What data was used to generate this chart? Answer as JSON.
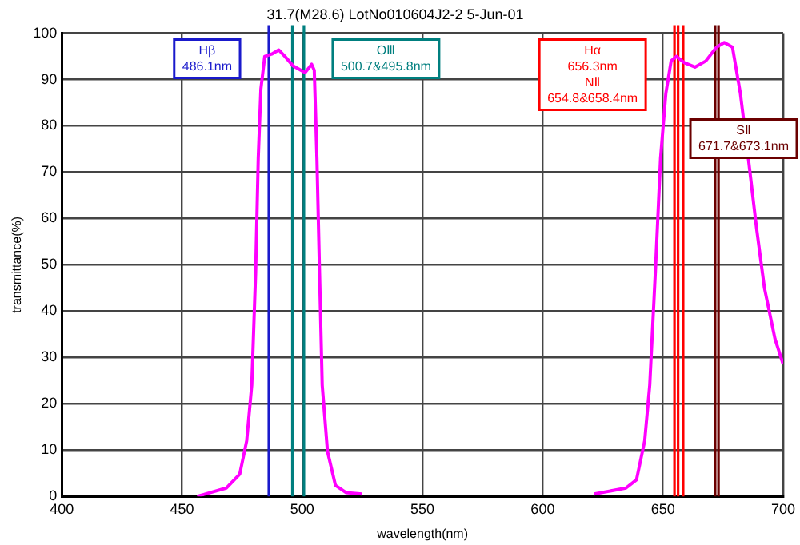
{
  "chart_data": {
    "type": "line",
    "title": "31.7(M28.6) LotNo010604J2-2 5-Jun-01",
    "xlabel": "wavelength(nm)",
    "ylabel": "transmittance(%)",
    "xlim": [
      400,
      700
    ],
    "xticks": [
      400,
      450,
      500,
      550,
      600,
      650,
      700
    ],
    "ylim": [
      0,
      100
    ],
    "yticks": [
      0,
      10,
      20,
      30,
      40,
      50,
      60,
      70,
      80,
      90,
      100
    ],
    "grid": true,
    "legend": false,
    "marker": "none",
    "line_style": "solid",
    "series": [
      {
        "color": "#ff00ff",
        "x": [
          456.3,
          468.4,
          474,
          476.9,
          479,
          480.6,
          481.7,
          482.8,
          484.4,
          487.3,
          490.2,
          492.8,
          496.1,
          499.5,
          501.2,
          503.9,
          505,
          506.1,
          507.2,
          508.3,
          510.5,
          513.8,
          518.3,
          524.9,
          570,
          621.3,
          634.6,
          639,
          642.4,
          644.5,
          646.8,
          649,
          651.2,
          653.4,
          655.6,
          659,
          663.3,
          667.8,
          672.3,
          675.5,
          678.9,
          682.2,
          685.5,
          688.9,
          692.2,
          696.6,
          700
        ],
        "values": [
          0,
          1.8,
          4.8,
          12,
          24,
          48,
          73,
          88,
          95,
          95.5,
          96.4,
          95,
          93,
          92,
          91.5,
          93.3,
          92,
          73,
          48,
          24,
          9.7,
          2.4,
          0.8,
          0.5,
          null,
          0.5,
          1.8,
          3.6,
          12,
          24,
          48,
          73,
          87,
          94,
          95,
          93.6,
          92.7,
          94,
          97,
          98,
          97,
          87,
          73,
          58,
          45,
          34,
          28.5
        ]
      }
    ],
    "ref_lines": [
      {
        "axis": "x",
        "value": 486.1,
        "color": "#1a1acc",
        "label": "Hβ\n486.1nm"
      },
      {
        "axis": "x",
        "value": 495.9,
        "color": "#007f7f"
      },
      {
        "axis": "x",
        "value": 500.7,
        "color": "#007f7f",
        "label": "OⅢ\n500.7&495.8nm"
      },
      {
        "axis": "x",
        "value": 654.8,
        "color": "#ff0000"
      },
      {
        "axis": "x",
        "value": 656.3,
        "color": "#ff0000",
        "label": "Hα\n656.3nm\nNⅡ\n654.8&658.4nm"
      },
      {
        "axis": "x",
        "value": 658.4,
        "color": "#ff0000"
      },
      {
        "axis": "x",
        "value": 671.7,
        "color": "#6b0000"
      },
      {
        "axis": "x",
        "value": 673.1,
        "color": "#6b0000",
        "label": "SⅡ\n671.7&673.1nm"
      }
    ]
  }
}
